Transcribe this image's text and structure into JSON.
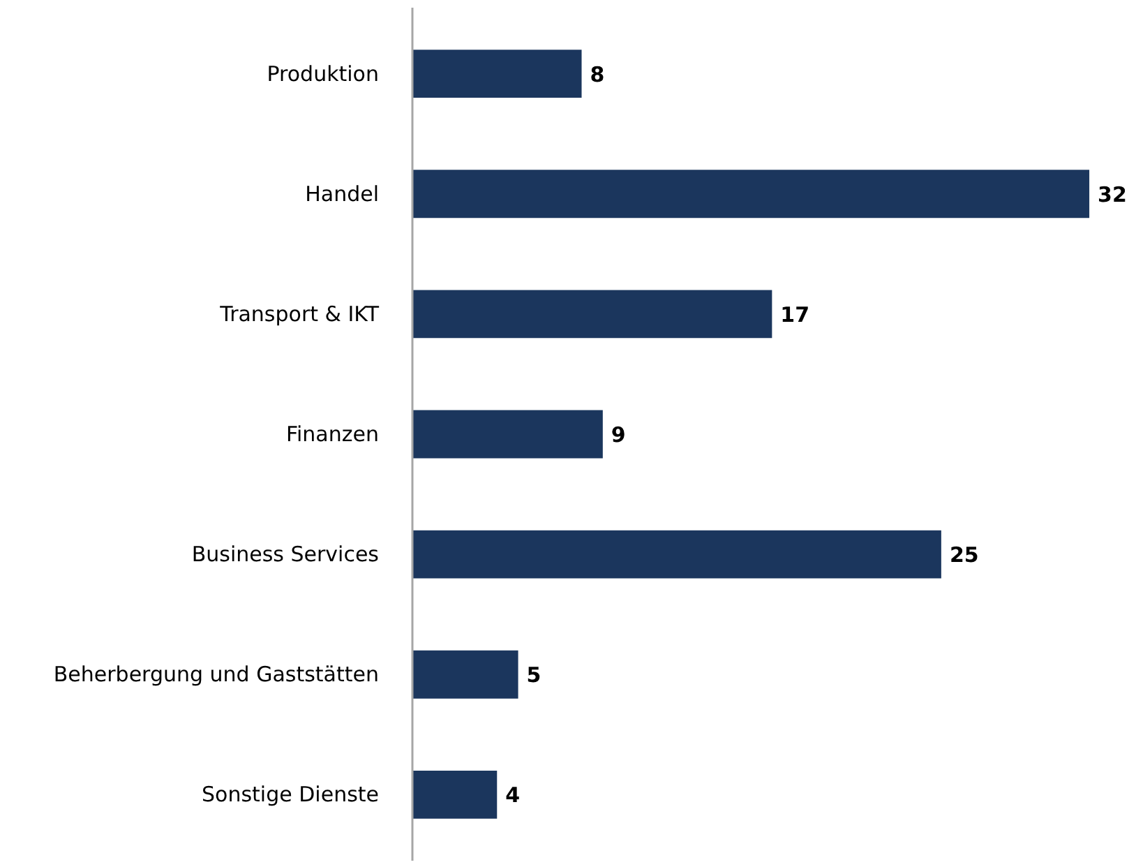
{
  "chart_data": {
    "type": "bar",
    "orientation": "horizontal",
    "categories": [
      "Produktion",
      "Handel",
      "Transport & IKT",
      "Finanzen",
      "Business Services",
      "Beherbergung und Gaststätten",
      "Sonstige Dienste"
    ],
    "values": [
      8,
      32,
      17,
      9,
      25,
      5,
      4
    ],
    "color": "#1b365d",
    "data_labels": true,
    "grid": false
  }
}
